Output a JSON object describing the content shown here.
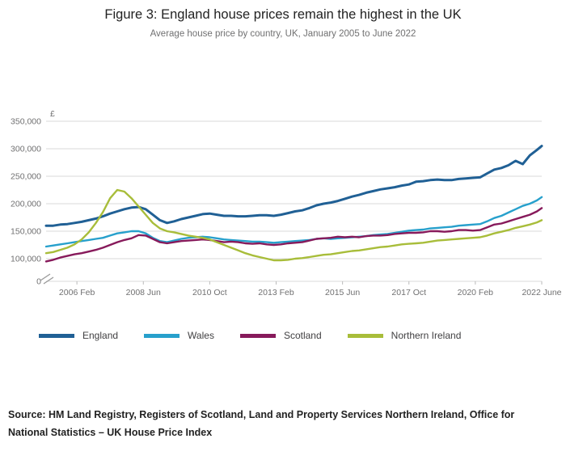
{
  "header": {
    "title": "Figure 3: England house prices remain the highest in the UK",
    "subtitle": "Average house price by country, UK, January 2005 to June 2022"
  },
  "chart_data": {
    "type": "line",
    "title": "Figure 3: England house prices remain the highest in the UK",
    "subtitle": "Average house price by country, UK, January 2005 to June 2022",
    "ylabel": "£",
    "xlabel": "",
    "grid": "horizontal",
    "legend_position": "bottom-left",
    "axis_break_at_zero": true,
    "ylim": [
      0,
      350000
    ],
    "xlim": [
      2005.0,
      2022.417
    ],
    "y_ticks": [
      {
        "value": 0,
        "label": "0"
      },
      {
        "value": 100000,
        "label": "100,000"
      },
      {
        "value": 150000,
        "label": "150,000"
      },
      {
        "value": 200000,
        "label": "200,000"
      },
      {
        "value": 250000,
        "label": "250,000"
      },
      {
        "value": 300000,
        "label": "300,000"
      },
      {
        "value": 350000,
        "label": "350,000"
      }
    ],
    "x_ticks": [
      {
        "value": 2006.083,
        "label": "2006 Feb"
      },
      {
        "value": 2008.417,
        "label": "2008 Jun"
      },
      {
        "value": 2010.75,
        "label": "2010 Oct"
      },
      {
        "value": 2013.083,
        "label": "2013 Feb"
      },
      {
        "value": 2015.417,
        "label": "2015 Jun"
      },
      {
        "value": 2017.75,
        "label": "2017 Oct"
      },
      {
        "value": 2020.083,
        "label": "2020 Feb"
      },
      {
        "value": 2022.417,
        "label": "2022 June"
      }
    ],
    "x": [
      2005,
      2005.25,
      2005.5,
      2005.75,
      2006,
      2006.25,
      2006.5,
      2006.75,
      2007,
      2007.25,
      2007.5,
      2007.75,
      2008,
      2008.25,
      2008.5,
      2008.75,
      2009,
      2009.25,
      2009.5,
      2009.75,
      2010,
      2010.25,
      2010.5,
      2010.75,
      2011,
      2011.25,
      2011.5,
      2011.75,
      2012,
      2012.25,
      2012.5,
      2012.75,
      2013,
      2013.25,
      2013.5,
      2013.75,
      2014,
      2014.25,
      2014.5,
      2014.75,
      2015,
      2015.25,
      2015.5,
      2015.75,
      2016,
      2016.25,
      2016.5,
      2016.75,
      2017,
      2017.25,
      2017.5,
      2017.75,
      2018,
      2018.25,
      2018.5,
      2018.75,
      2019,
      2019.25,
      2019.5,
      2019.75,
      2020,
      2020.25,
      2020.5,
      2020.75,
      2021,
      2021.25,
      2021.5,
      2021.75,
      2022,
      2022.25,
      2022.417
    ],
    "series": [
      {
        "name": "England",
        "color": "#206095",
        "values": [
          160000,
          160000,
          162000,
          163000,
          165000,
          167000,
          170000,
          173000,
          177000,
          182000,
          186000,
          190000,
          193000,
          194000,
          190000,
          180000,
          170000,
          165000,
          168000,
          172000,
          175000,
          178000,
          181000,
          182000,
          180000,
          178000,
          178000,
          177000,
          177000,
          178000,
          179000,
          179000,
          178000,
          180000,
          183000,
          186000,
          188000,
          192000,
          197000,
          200000,
          202000,
          205000,
          209000,
          213000,
          216000,
          220000,
          223000,
          226000,
          228000,
          230000,
          233000,
          235000,
          240000,
          241000,
          243000,
          244000,
          243000,
          243000,
          245000,
          246000,
          247000,
          248000,
          255000,
          262000,
          265000,
          270000,
          278000,
          272000,
          288000,
          298000,
          305000
        ]
      },
      {
        "name": "Wales",
        "color": "#27A0CC",
        "values": [
          122000,
          124000,
          126000,
          128000,
          130000,
          132000,
          134000,
          136000,
          138000,
          142000,
          146000,
          148000,
          150000,
          150000,
          146000,
          138000,
          132000,
          130000,
          133000,
          136000,
          138000,
          139000,
          140000,
          139000,
          137000,
          135000,
          134000,
          133000,
          132000,
          131000,
          131000,
          130000,
          129000,
          130000,
          131000,
          132000,
          133000,
          134000,
          136000,
          137000,
          136000,
          137000,
          138000,
          139000,
          140000,
          141000,
          143000,
          144000,
          145000,
          147000,
          149000,
          151000,
          152000,
          153000,
          155000,
          156000,
          157000,
          158000,
          160000,
          161000,
          162000,
          163000,
          168000,
          174000,
          178000,
          184000,
          190000,
          196000,
          200000,
          206000,
          212000
        ]
      },
      {
        "name": "Scotland",
        "color": "#871A5B",
        "values": [
          95000,
          98000,
          102000,
          105000,
          108000,
          110000,
          113000,
          116000,
          120000,
          125000,
          130000,
          134000,
          137000,
          143000,
          142000,
          136000,
          130000,
          128000,
          130000,
          132000,
          133000,
          134000,
          135000,
          134000,
          132000,
          130000,
          131000,
          130000,
          128000,
          127000,
          128000,
          126000,
          125000,
          126000,
          128000,
          129000,
          130000,
          133000,
          136000,
          137000,
          138000,
          140000,
          139000,
          140000,
          139000,
          141000,
          142000,
          142000,
          143000,
          145000,
          146000,
          147000,
          147000,
          148000,
          150000,
          150000,
          149000,
          150000,
          152000,
          152000,
          151000,
          152000,
          157000,
          162000,
          164000,
          168000,
          172000,
          176000,
          180000,
          186000,
          192000
        ]
      },
      {
        "name": "Northern Ireland",
        "color": "#A8BD3A",
        "values": [
          110000,
          112000,
          116000,
          120000,
          126000,
          135000,
          148000,
          165000,
          185000,
          210000,
          225000,
          222000,
          210000,
          195000,
          180000,
          165000,
          155000,
          150000,
          148000,
          145000,
          142000,
          140000,
          138000,
          135000,
          130000,
          125000,
          120000,
          115000,
          110000,
          106000,
          103000,
          100000,
          97000,
          97000,
          98000,
          100000,
          101000,
          103000,
          105000,
          107000,
          108000,
          110000,
          112000,
          114000,
          115000,
          117000,
          119000,
          121000,
          122000,
          124000,
          126000,
          127000,
          128000,
          129000,
          131000,
          133000,
          134000,
          135000,
          136000,
          137000,
          138000,
          139000,
          142000,
          146000,
          149000,
          152000,
          156000,
          159000,
          162000,
          166000,
          170000
        ]
      }
    ]
  },
  "source": {
    "text": "Source: HM Land Registry, Registers of Scotland, Land and Property Services Northern Ireland, Office for National Statistics – UK House Price Index"
  }
}
